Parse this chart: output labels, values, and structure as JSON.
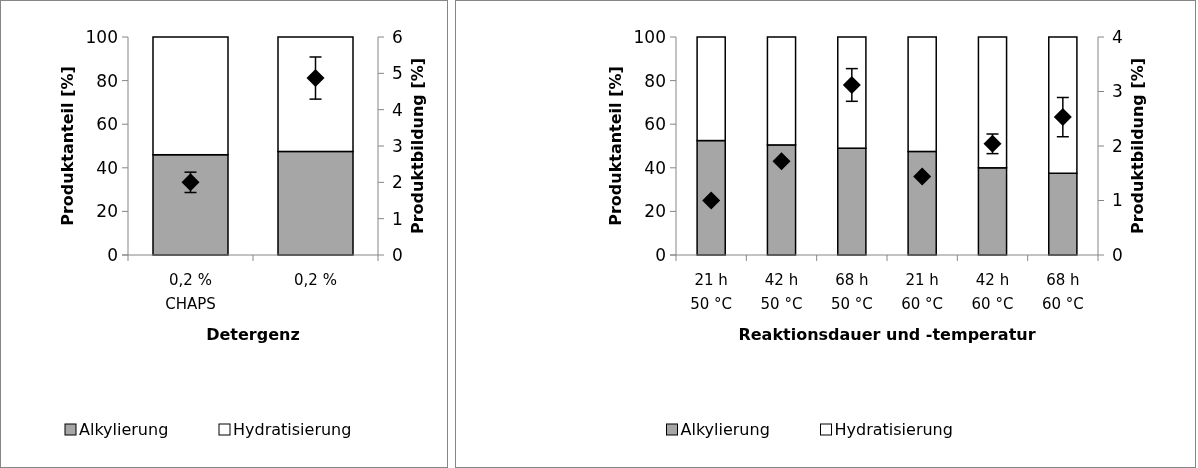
{
  "chart_data": [
    {
      "type": "bar",
      "stacked": true,
      "categories": [
        "0,2 %\nCHAPS",
        "0,2 %"
      ],
      "xlabel": "Detergenz",
      "ylabel": "Produktanteil [%]",
      "y2label": "Produktbildung [%]",
      "ylim": [
        0,
        100
      ],
      "yticks": [
        0,
        20,
        40,
        60,
        80,
        100
      ],
      "y2lim": [
        0,
        6
      ],
      "y2ticks": [
        0,
        1,
        2,
        3,
        4,
        5,
        6
      ],
      "grid": false,
      "legend": "bottom",
      "series": [
        {
          "name": "Alkylierung",
          "color": "#a6a6a6",
          "values": [
            46,
            47.5
          ]
        },
        {
          "name": "Hydratisierung",
          "color": "#ffffff",
          "values": [
            54,
            52.5
          ]
        },
        {
          "type": "scatter",
          "axis": "y2",
          "marker": "diamond",
          "color": "#000000",
          "x": [
            "0,2 %\nCHAPS",
            "0,2 %"
          ],
          "values": [
            2.0,
            4.87
          ],
          "errors": [
            0.28,
            0.58
          ]
        }
      ]
    },
    {
      "type": "bar",
      "stacked": true,
      "categories": [
        "21 h\n50 °C",
        "42 h\n50 °C",
        "68 h\n50 °C",
        "21 h\n60 °C",
        "42 h\n60 °C",
        "68 h\n60 °C"
      ],
      "xlabel": "Reaktionsdauer und -temperatur",
      "ylabel": "Produktanteil [%]",
      "y2label": "Produktbildung [%]",
      "ylim": [
        0,
        100
      ],
      "yticks": [
        0,
        20,
        40,
        60,
        80,
        100
      ],
      "y2lim": [
        0,
        4
      ],
      "y2ticks": [
        0,
        1,
        2,
        3,
        4
      ],
      "grid": false,
      "legend": "bottom",
      "series": [
        {
          "name": "Alkylierung",
          "color": "#a6a6a6",
          "values": [
            52.5,
            50.5,
            49,
            47.5,
            40,
            37.5
          ]
        },
        {
          "name": "Hydratisierung",
          "color": "#ffffff",
          "values": [
            47.5,
            49.5,
            51,
            52.5,
            60,
            62.5
          ]
        },
        {
          "type": "scatter",
          "axis": "y2",
          "marker": "diamond",
          "color": "#000000",
          "x": [
            "21 h\n50 °C",
            "42 h\n50 °C",
            "68 h\n50 °C",
            "21 h\n60 °C",
            "42 h\n60 °C",
            "68 h\n60 °C"
          ],
          "values": [
            1.0,
            1.72,
            3.12,
            1.44,
            2.04,
            2.53
          ],
          "errors": [
            null,
            null,
            0.3,
            null,
            0.18,
            0.36
          ]
        }
      ]
    }
  ]
}
